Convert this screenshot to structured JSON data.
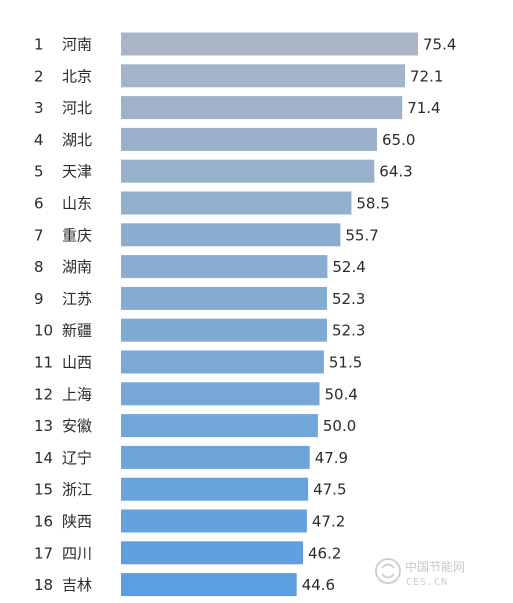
{
  "chart_data": {
    "type": "bar",
    "orientation": "horizontal",
    "title": "",
    "xlabel": "",
    "ylabel": "",
    "xlim": [
      0,
      80
    ],
    "grid": false,
    "legend": "none",
    "ranks": [
      "1",
      "2",
      "3",
      "4",
      "5",
      "6",
      "7",
      "8",
      "9",
      "10",
      "11",
      "12",
      "13",
      "14",
      "15",
      "16",
      "17",
      "18"
    ],
    "categories": [
      "河南",
      "北京",
      "河北",
      "湖北",
      "天津",
      "山东",
      "重庆",
      "湖南",
      "江苏",
      "新疆",
      "山西",
      "上海",
      "安徽",
      "辽宁",
      "浙江",
      "陕西",
      "四川",
      "吉林"
    ],
    "values": [
      75.4,
      72.1,
      71.4,
      65.0,
      64.3,
      58.5,
      55.7,
      52.4,
      52.3,
      52.3,
      51.5,
      50.4,
      50.0,
      47.9,
      47.5,
      47.2,
      46.2,
      44.6
    ],
    "value_labels": [
      "75.4",
      "72.1",
      "71.4",
      "65.0",
      "64.3",
      "58.5",
      "55.7",
      "52.4",
      "52.3",
      "52.3",
      "51.5",
      "50.4",
      "50.0",
      "47.9",
      "47.5",
      "47.2",
      "46.2",
      "44.6"
    ],
    "colors": {
      "bar_start": "#a9b5c6",
      "bar_end": "#5b9fe0",
      "text": "#2b2b2b"
    }
  },
  "watermark": {
    "icon": "logo-icon",
    "text": "中国节能网",
    "sub": "CES.CN"
  }
}
